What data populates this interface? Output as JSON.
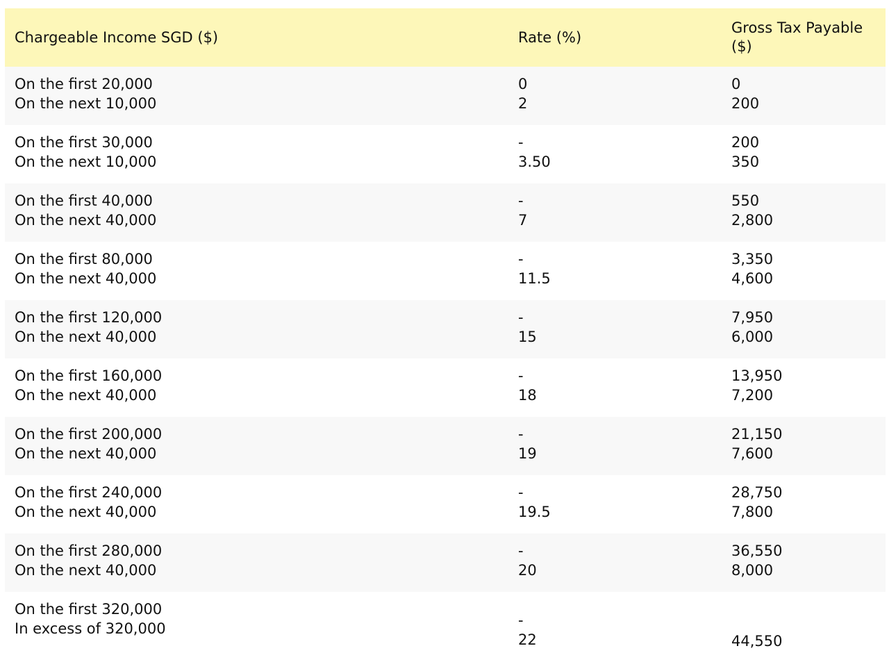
{
  "table": {
    "headers": {
      "income": "Chargeable Income SGD ($)",
      "rate": "Rate (%)",
      "tax_line1": "Gross Tax Payable",
      "tax_line2": "($)"
    },
    "rows": [
      {
        "income": [
          "On the first 20,000",
          "On the next 10,000"
        ],
        "rate": [
          "0",
          "2"
        ],
        "tax": [
          "0",
          "200"
        ]
      },
      {
        "income": [
          "On the first 30,000",
          "On the next 10,000"
        ],
        "rate": [
          "-",
          "3.50"
        ],
        "tax": [
          "200",
          "350"
        ]
      },
      {
        "income": [
          "On the first 40,000",
          "On the next 40,000"
        ],
        "rate": [
          "-",
          "7"
        ],
        "tax": [
          "550",
          "2,800"
        ]
      },
      {
        "income": [
          "On the first 80,000",
          "On the next 40,000"
        ],
        "rate": [
          "-",
          "11.5"
        ],
        "tax": [
          "3,350",
          "4,600"
        ]
      },
      {
        "income": [
          "On the first 120,000",
          "On the next 40,000"
        ],
        "rate": [
          "-",
          "15"
        ],
        "tax": [
          "7,950",
          "6,000"
        ]
      },
      {
        "income": [
          "On the first 160,000",
          "On the next 40,000"
        ],
        "rate": [
          "-",
          "18"
        ],
        "tax": [
          "13,950",
          "7,200"
        ]
      },
      {
        "income": [
          "On the first 200,000",
          "On the next 40,000"
        ],
        "rate": [
          "-",
          "19"
        ],
        "tax": [
          "21,150",
          "7,600"
        ]
      },
      {
        "income": [
          "On the first 240,000",
          "On the next 40,000"
        ],
        "rate": [
          "-",
          "19.5"
        ],
        "tax": [
          "28,750",
          "7,800"
        ]
      },
      {
        "income": [
          "On the first 280,000",
          "On the next 40,000"
        ],
        "rate": [
          "-",
          "20"
        ],
        "tax": [
          "36,550",
          "8,000"
        ]
      },
      {
        "income": [
          "On the first 320,000",
          "In excess of 320,000"
        ],
        "rate": [
          "-",
          "22"
        ],
        "tax": [
          "44,550"
        ]
      }
    ]
  },
  "colors": {
    "header_bg": "#fdf7b9",
    "alt_row_bg": "#f8f8f8",
    "text": "#111111"
  }
}
